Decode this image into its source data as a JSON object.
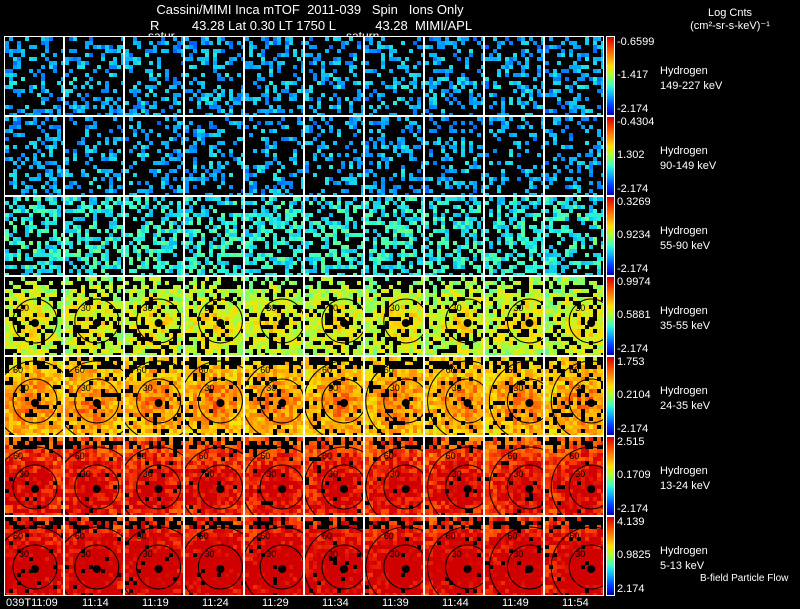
{
  "header": {
    "title_line1": "Cassini/MIMI Inca mTOF  2011-039   Spin   Ions Only",
    "title_line2": "R         43.28 Lat 0.30 LT 1750 L           43.28  MIMI/APL",
    "saturn_labels": [
      "satur",
      "saturn"
    ]
  },
  "units": {
    "line1": "Log Cnts",
    "line2": "(cm²-sr-s-keV)⁻¹"
  },
  "rows": [
    {
      "species": "Hydrogen",
      "energy": "149-227 keV",
      "cb_max": "-0.6599",
      "cb_mid": "-1.417",
      "cb_min": "-2.174",
      "intensity": 0.25,
      "fill": 0.35
    },
    {
      "species": "Hydrogen",
      "energy": "90-149 keV",
      "cb_max": "-0.4304",
      "cb_mid": "1.302",
      "cb_min": "-2.174",
      "intensity": 0.25,
      "fill": 0.3
    },
    {
      "species": "Hydrogen",
      "energy": "55-90 keV",
      "cb_max": "0.3269",
      "cb_mid": "0.9234",
      "cb_min": "-2.174",
      "intensity": 0.35,
      "fill": 0.5
    },
    {
      "species": "Hydrogen",
      "energy": "35-55 keV",
      "cb_max": "0.9974",
      "cb_mid": "0.5881",
      "cb_min": "-2.174",
      "intensity": 0.45,
      "fill": 0.72
    },
    {
      "species": "Hydrogen",
      "energy": "24-35 keV",
      "cb_max": "1.753",
      "cb_mid": "0.2104",
      "cb_min": "-2.174",
      "intensity": 0.6,
      "fill": 0.85
    },
    {
      "species": "Hydrogen",
      "energy": "13-24 keV",
      "cb_max": "2.515",
      "cb_mid": "0.1709",
      "cb_min": "-2.174",
      "intensity": 0.8,
      "fill": 0.95
    },
    {
      "species": "Hydrogen",
      "energy": "5-13 keV",
      "cb_max": "4.139",
      "cb_mid": "0.9825",
      "cb_min": "2.174",
      "intensity": 0.86,
      "fill": 0.96
    }
  ],
  "times": [
    "039T11:09",
    "11:14",
    "11:19",
    "11:24",
    "11:29",
    "11:34",
    "11:39",
    "11:44",
    "11:49",
    "11:54"
  ],
  "contour_labels": [
    "30",
    "60"
  ],
  "footer": {
    "bfield_label": "B-field Particle Flow"
  },
  "colors": {
    "background": "#000000",
    "frame": "#ffffff",
    "contour": "#000000"
  }
}
